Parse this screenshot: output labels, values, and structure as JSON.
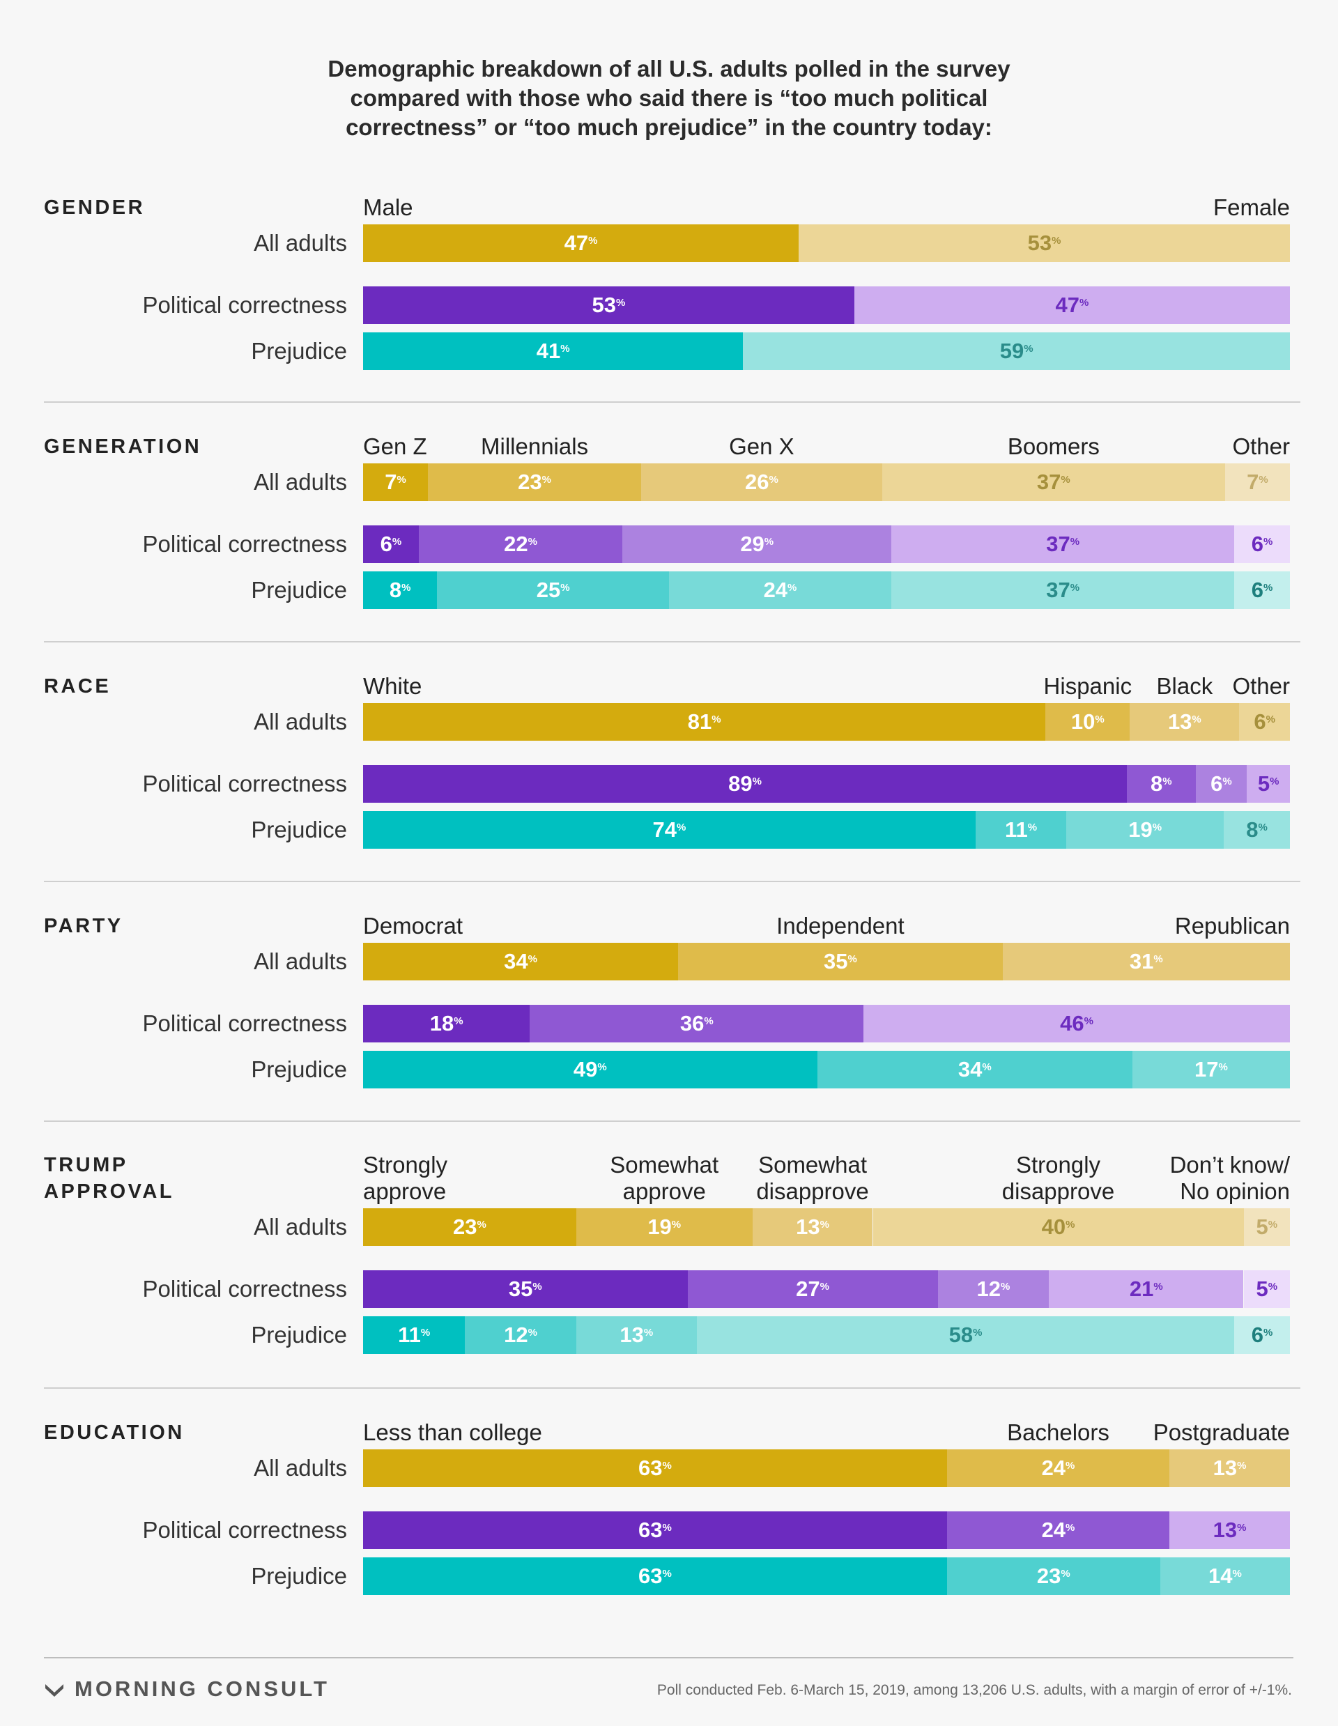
{
  "title_lines": [
    "Demographic breakdown of all U.S. adults polled in the survey",
    "compared with those who said there is “too much political",
    "correctness” or “too much prejudice” in the country today:"
  ],
  "row_labels": [
    "All adults",
    "Political correctness",
    "Prejudice"
  ],
  "colors": {
    "All adults": [
      "#d4ab0e",
      "#dfbb4a",
      "#e6c97a",
      "#ecd697",
      "#f2e3bd"
    ],
    "All adults_text": [
      "#ffffff",
      "#ffffff",
      "#ffffff",
      "#a6903c",
      "#c2ab6a"
    ],
    "Political correctness": [
      "#6c2bbf",
      "#8f58d3",
      "#ac82e0",
      "#ceadf0",
      "#ecdcfb"
    ],
    "Political correctness_text": [
      "#ffffff",
      "#ffffff",
      "#ffffff",
      "#6c2bbf",
      "#6c2bbf"
    ],
    "Prejudice": [
      "#00c0c0",
      "#4fd0cf",
      "#78dad8",
      "#98e3e0",
      "#c3efed"
    ],
    "Prejudice_text": [
      "#ffffff",
      "#ffffff",
      "#ffffff",
      "#2a8c8a",
      "#1e7f7d"
    ]
  },
  "chart_data": {
    "type": "bar",
    "stacked": true,
    "unit": "%",
    "groups": [
      {
        "name": "GENDER",
        "categories": [
          "Male",
          "Female"
        ],
        "series": [
          {
            "name": "All adults",
            "values": [
              47,
              53
            ]
          },
          {
            "name": "Political correctness",
            "values": [
              53,
              47
            ]
          },
          {
            "name": "Prejudice",
            "values": [
              41,
              59
            ]
          }
        ]
      },
      {
        "name": "GENERATION",
        "categories": [
          "Gen Z",
          "Millennials",
          "Gen X",
          "Boomers",
          "Other"
        ],
        "series": [
          {
            "name": "All adults",
            "values": [
              7,
              23,
              26,
              37,
              7
            ]
          },
          {
            "name": "Political correctness",
            "values": [
              6,
              22,
              29,
              37,
              6
            ]
          },
          {
            "name": "Prejudice",
            "values": [
              8,
              25,
              24,
              37,
              6
            ]
          }
        ]
      },
      {
        "name": "RACE",
        "categories": [
          "White",
          "Hispanic",
          "Black",
          "Other"
        ],
        "series": [
          {
            "name": "All adults",
            "values": [
              81,
              10,
              13,
              6
            ]
          },
          {
            "name": "Political correctness",
            "values": [
              89,
              8,
              6,
              5
            ]
          },
          {
            "name": "Prejudice",
            "values": [
              74,
              11,
              19,
              8
            ]
          }
        ]
      },
      {
        "name": "PARTY",
        "categories": [
          "Democrat",
          "Independent",
          "Republican"
        ],
        "series": [
          {
            "name": "All adults",
            "values": [
              34,
              35,
              31
            ]
          },
          {
            "name": "Political correctness",
            "values": [
              18,
              36,
              46
            ]
          },
          {
            "name": "Prejudice",
            "values": [
              49,
              34,
              17
            ]
          }
        ]
      },
      {
        "name": "TRUMP APPROVAL",
        "categories": [
          "Strongly approve",
          "Somewhat approve",
          "Somewhat disapprove",
          "Strongly disapprove",
          "Don’t know/ No opinion"
        ],
        "series": [
          {
            "name": "All adults",
            "values": [
              23,
              19,
              13,
              40,
              5
            ]
          },
          {
            "name": "Political correctness",
            "values": [
              35,
              27,
              12,
              21,
              5
            ]
          },
          {
            "name": "Prejudice",
            "values": [
              11,
              12,
              13,
              58,
              6
            ]
          }
        ]
      },
      {
        "name": "EDUCATION",
        "categories": [
          "Less than college",
          "Bachelors",
          "Postgraduate"
        ],
        "series": [
          {
            "name": "All adults",
            "values": [
              63,
              24,
              13
            ]
          },
          {
            "name": "Political correctness",
            "values": [
              63,
              24,
              13
            ]
          },
          {
            "name": "Prejudice",
            "values": [
              63,
              23,
              14
            ]
          }
        ]
      }
    ]
  },
  "footer": {
    "brand": "MORNING CONSULT",
    "note": "Poll conducted Feb. 6-March 15, 2019, among 13,206 U.S. adults, with a margin of error of +/-1%."
  }
}
